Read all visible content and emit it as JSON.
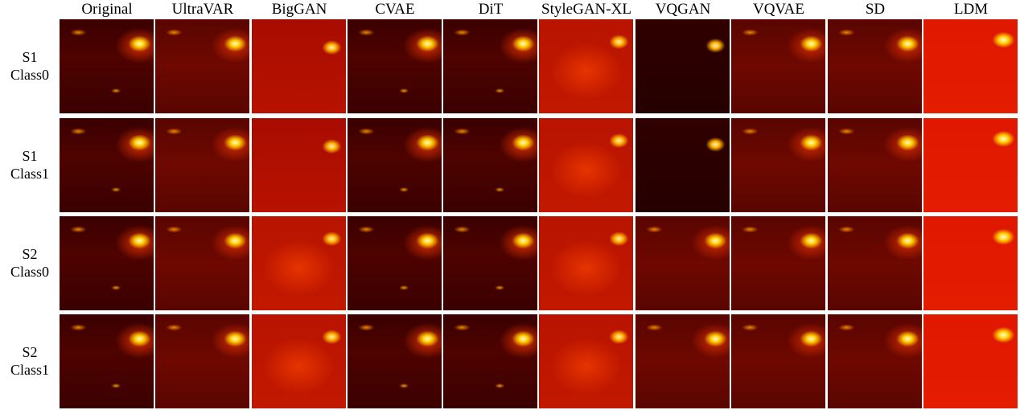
{
  "columns": [
    "Original",
    "UltraVAR",
    "BigGAN",
    "CVAE",
    "DiT",
    "StyleGAN-XL",
    "VQGAN",
    "VQVAE",
    "SD",
    "LDM"
  ],
  "rows": [
    {
      "line1": "S1",
      "line2": "Class0"
    },
    {
      "line1": "S1",
      "line2": "Class1"
    },
    {
      "line1": "S2",
      "line2": "Class0"
    },
    {
      "line1": "S2",
      "line2": "Class1"
    }
  ],
  "colormap": [
    "#300000",
    "#b01000",
    "#ff4000",
    "#ffd000",
    "#fffbe0"
  ]
}
